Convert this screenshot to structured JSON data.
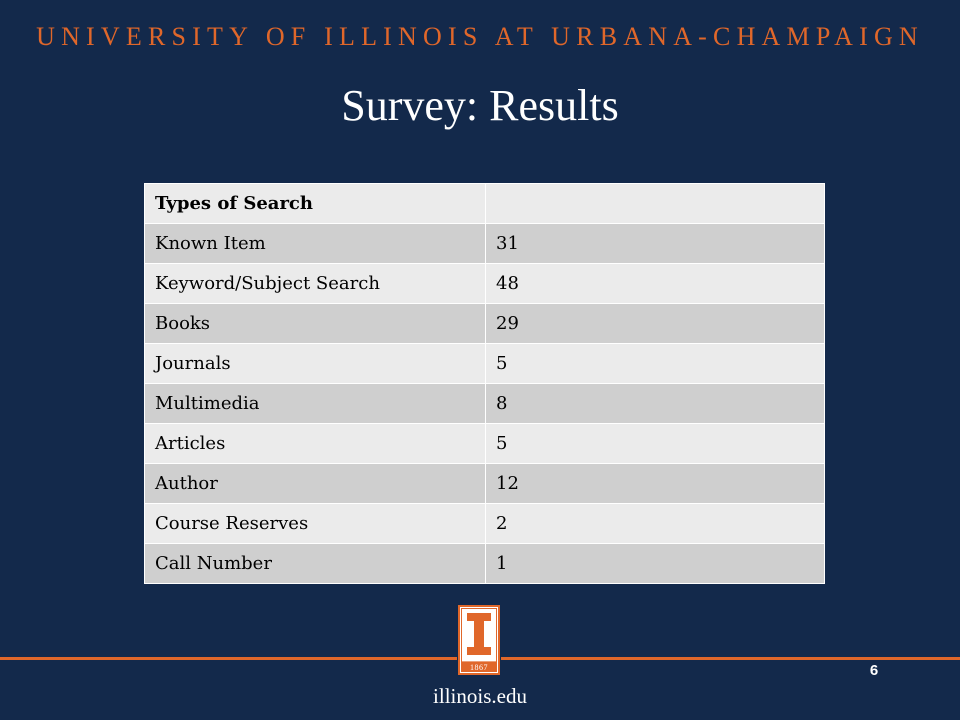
{
  "header": {
    "university": "UNIVERSITY OF ILLINOIS AT URBANA-CHAMPAIGN",
    "title": "Survey: Results"
  },
  "table": {
    "header": [
      "Types of Search",
      ""
    ],
    "rows": [
      [
        "Known Item",
        "31"
      ],
      [
        "Keyword/Subject Search",
        "48"
      ],
      [
        "Books",
        "29"
      ],
      [
        "Journals",
        "5"
      ],
      [
        "Multimedia",
        "8"
      ],
      [
        "Articles",
        "5"
      ],
      [
        "Author",
        "12"
      ],
      [
        "Course Reserves",
        "2"
      ],
      [
        "Call Number",
        "1"
      ]
    ]
  },
  "footer": {
    "logo_year": "1867",
    "page_number": "6",
    "url": "illinois.edu"
  },
  "colors": {
    "background": "#13294b",
    "accent": "#e0672a"
  }
}
